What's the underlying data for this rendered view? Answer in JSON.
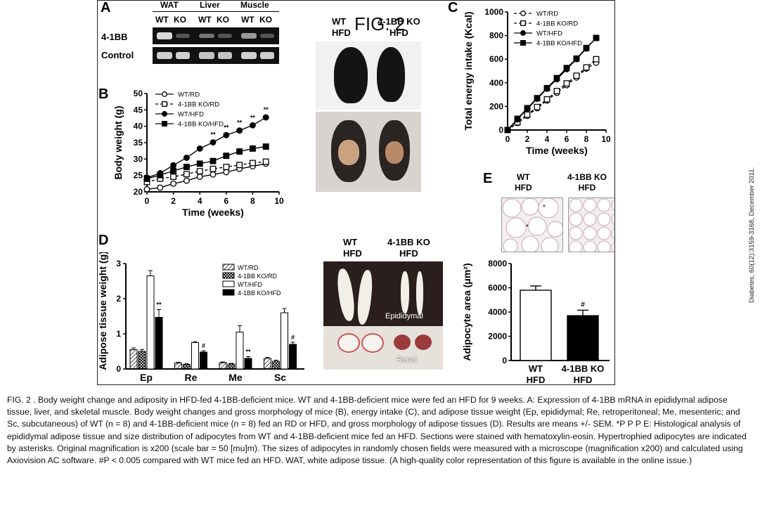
{
  "figure_title": "FIG. 2",
  "side_citation": "Diabetes, 60(12):3159-3168, December 2011.",
  "caption": "FIG. 2 . Body weight change and adiposity in HFD-fed 4-1BB-deficient mice. WT and 4-1BB-deficient mice were fed an HFD for 9 weeks. A: Expression of 4-1BB mRNA in epididymal adipose tissue, liver, and skeletal muscle. Body weight changes and gross morphology of mice (B), energy intake (C), and adipose tissue weight (Ep, epididymal; Re, retroperitoneal; Me, mesenteric; and Sc, subcutaneous)  of WT (n = 8) and 4-1BB-deficient mice (n = 8) fed an RD or HFD, and gross morphology of adipose tissues (D). Results are means +/- SEM. *P P P E: Histological analysis of epididymal adipose tissue and size distribution of adipocytes from WT and 4-1BB-deficient mice fed an HFD. Sections were stained with hematoxylin-eosin. Hypertrophied adipocytes are indicated by asterisks. Original magnification is x200 (scale bar = 50 [mu]m). The sizes of adipocytes in randomly chosen fields were measured with a microscope (magnification x200) and calculated using Axiovision AC software. #P < 0.005 compared with WT mice fed an HFD. WAT, white adipose tissue. (A high-quality color representation of this figure is available in the online issue.)",
  "panelA": {
    "letter": "A",
    "tissues": [
      "WAT",
      "Liver",
      "Muscle"
    ],
    "genotypes": [
      "WT",
      "KO",
      "WT",
      "KO",
      "WT",
      "KO"
    ],
    "rows": [
      "4-1BB",
      "Control"
    ]
  },
  "mice_photo": {
    "left": "WT\nHFD",
    "right": "4-1BB KO\nHFD"
  },
  "tissue_photo": {
    "left": "WT\nHFD",
    "right": "4-1BB KO\nHFD",
    "label_top": "Epididymal",
    "label_bottom": "Renal"
  },
  "panelE_images": {
    "letter": "E",
    "left": "WT\nHFD",
    "right": "4-1BB KO\nHFD"
  },
  "chart_data": [
    {
      "panel": "B",
      "type": "line",
      "xlabel": "Time (weeks)",
      "ylabel": "Body weight (g)",
      "xlim": [
        0,
        10
      ],
      "ylim": [
        20,
        50
      ],
      "xticks": [
        0,
        2,
        4,
        6,
        8,
        10
      ],
      "yticks": [
        20,
        25,
        30,
        35,
        40,
        45,
        50
      ],
      "legend": "top-left",
      "x": [
        0,
        1,
        2,
        3,
        4,
        5,
        6,
        7,
        8,
        9
      ],
      "series": [
        {
          "name": "WT/RD",
          "marker": "circle-open",
          "line": "solid",
          "values": [
            20.8,
            21.3,
            22.5,
            23.4,
            24.6,
            25.3,
            26.0,
            27.0,
            27.8,
            28.6
          ]
        },
        {
          "name": "4-1BB KO/RD",
          "marker": "square-open",
          "line": "dashed",
          "values": [
            23.0,
            24.0,
            24.6,
            25.4,
            26.3,
            27.0,
            27.6,
            28.2,
            28.8,
            29.2
          ]
        },
        {
          "name": "WT/HFD",
          "marker": "circle-filled",
          "line": "solid",
          "values": [
            24.3,
            25.7,
            28.1,
            30.4,
            33.2,
            35.1,
            37.3,
            38.7,
            40.3,
            42.7
          ]
        },
        {
          "name": "4-1BB KO/HFD",
          "marker": "square-filled",
          "line": "solid",
          "values": [
            24.0,
            25.1,
            26.4,
            27.6,
            28.6,
            29.4,
            31.0,
            32.3,
            33.2,
            33.8
          ]
        }
      ],
      "annotations": [
        "*",
        "**",
        "**",
        "**",
        "**",
        "**"
      ]
    },
    {
      "panel": "C",
      "type": "line",
      "xlabel": "Time (weeks)",
      "ylabel": "Total energy intake (Kcal)",
      "xlim": [
        0,
        10
      ],
      "ylim": [
        0,
        1000
      ],
      "xticks": [
        0,
        2,
        4,
        6,
        8,
        10
      ],
      "yticks": [
        0,
        200,
        400,
        600,
        800,
        1000
      ],
      "legend": "top-left",
      "x": [
        0,
        1,
        2,
        3,
        4,
        5,
        6,
        7,
        8,
        9
      ],
      "series": [
        {
          "name": "WT/RD",
          "marker": "circle-open",
          "line": "dashed",
          "values": [
            0,
            60,
            120,
            185,
            250,
            315,
            380,
            445,
            520,
            570
          ]
        },
        {
          "name": "4-1BB KO/RD",
          "marker": "square-open",
          "line": "dashed",
          "values": [
            0,
            65,
            130,
            195,
            260,
            330,
            395,
            460,
            530,
            600
          ]
        },
        {
          "name": "WT/HFD",
          "marker": "circle-filled",
          "line": "solid",
          "values": [
            0,
            90,
            180,
            265,
            350,
            430,
            515,
            600,
            690,
            780
          ]
        },
        {
          "name": "4-1BB KO/HFD",
          "marker": "square-filled",
          "line": "solid",
          "values": [
            0,
            95,
            185,
            270,
            355,
            440,
            525,
            605,
            695,
            780
          ]
        }
      ]
    },
    {
      "panel": "D",
      "type": "bar",
      "ylabel": "Adipose tissue weight (g)",
      "ylim": [
        0,
        3
      ],
      "yticks": [
        0,
        1,
        2,
        3
      ],
      "categories": [
        "Ep",
        "Re",
        "Me",
        "Sc"
      ],
      "legend": "top-right",
      "series": [
        {
          "name": "WT/RD",
          "pattern": "hatch",
          "values": [
            0.55,
            0.17,
            0.18,
            0.3
          ],
          "errors": [
            0.05,
            0.02,
            0.02,
            0.03
          ]
        },
        {
          "name": "4-1BB KO/RD",
          "pattern": "crosshatch",
          "values": [
            0.5,
            0.13,
            0.14,
            0.22
          ],
          "errors": [
            0.05,
            0.02,
            0.02,
            0.03
          ]
        },
        {
          "name": "WT/HFD",
          "pattern": "open",
          "values": [
            2.65,
            0.75,
            1.05,
            1.6
          ],
          "errors": [
            0.15,
            0.03,
            0.18,
            0.12
          ]
        },
        {
          "name": "4-1BB KO/HFD",
          "pattern": "solid",
          "values": [
            1.47,
            0.48,
            0.3,
            0.7
          ],
          "errors": [
            0.22,
            0.04,
            0.05,
            0.06
          ]
        }
      ],
      "annotations": [
        {
          "category": "Ep",
          "text": "**"
        },
        {
          "category": "Re",
          "text": "#"
        },
        {
          "category": "Me",
          "text": "**"
        },
        {
          "category": "Sc",
          "text": "#"
        }
      ]
    },
    {
      "panel": "E",
      "type": "bar",
      "ylabel": "Adipocyte area (μm²)",
      "ylim": [
        0,
        8000
      ],
      "yticks": [
        0,
        2000,
        4000,
        6000,
        8000
      ],
      "categories": [
        "WT\nHFD",
        "4-1BB KO\nHFD"
      ],
      "series": [
        {
          "name": "",
          "values": [
            5800,
            3700
          ],
          "errors": [
            350,
            450
          ]
        }
      ],
      "annotations": [
        {
          "category": "4-1BB KO\nHFD",
          "text": "#"
        }
      ]
    }
  ]
}
